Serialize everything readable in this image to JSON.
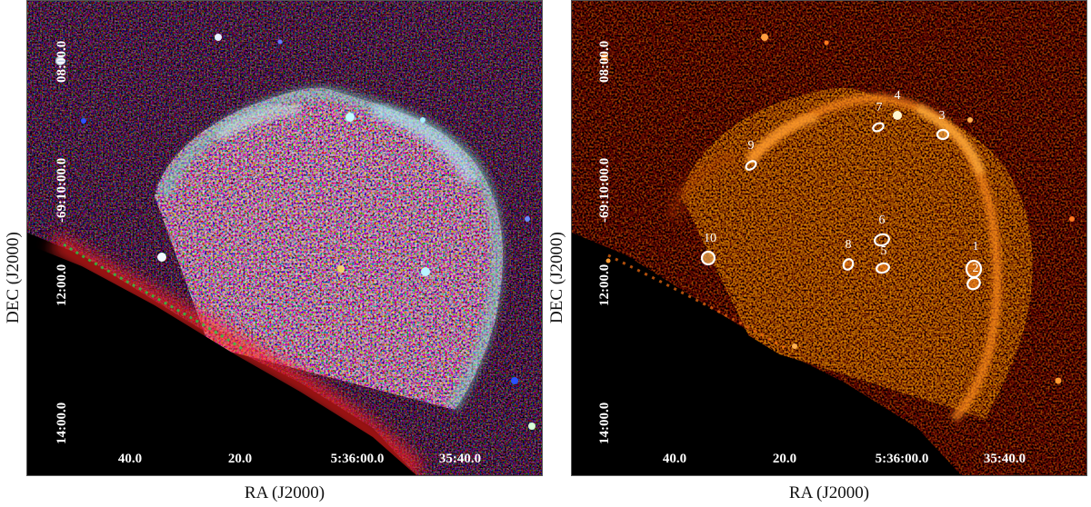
{
  "axes": {
    "ylabel": "DEC (J2000)",
    "xlabel": "RA (J2000)",
    "y_ticks": [
      "08:00.0",
      "-69:10:00.0",
      "12:00.0",
      "14:00.0"
    ],
    "x_ticks": [
      "40.0",
      "20.0",
      "5:36:00.0",
      "35:40.0"
    ]
  },
  "regions": [
    {
      "label": "1"
    },
    {
      "label": "2"
    },
    {
      "label": "3"
    },
    {
      "label": "4"
    },
    {
      "label": "5"
    },
    {
      "label": "6"
    },
    {
      "label": "7"
    },
    {
      "label": "8"
    },
    {
      "label": "9"
    },
    {
      "label": "10"
    }
  ],
  "colors": {
    "rgb_red": "#e01010",
    "rgb_green": "#20c040",
    "rgb_blue": "#1a3cff",
    "heat_mid": "#d04a00",
    "heat_bright": "#ffb020",
    "region_outline": "#ffffff"
  }
}
